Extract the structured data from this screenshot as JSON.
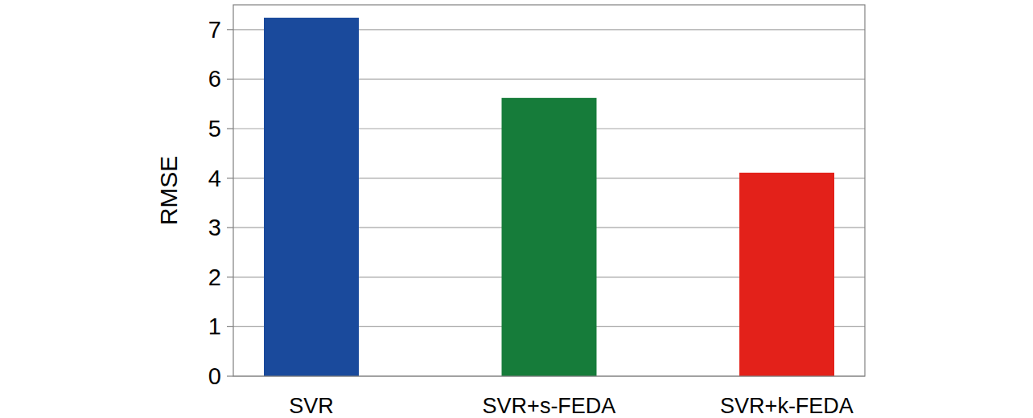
{
  "chart_data": {
    "type": "bar",
    "y_label": "RMSE",
    "categories": [
      "SVR",
      "SVR+s-FEDA",
      "SVR+k-FEDA"
    ],
    "values": [
      7.24,
      5.62,
      4.11
    ],
    "colors": [
      "#1a4a9c",
      "#167c3a",
      "#e3211a"
    ],
    "ylim": [
      0,
      7.5
    ],
    "yticks": [
      0,
      1,
      2,
      3,
      4,
      5,
      6,
      7
    ],
    "grid": true
  }
}
